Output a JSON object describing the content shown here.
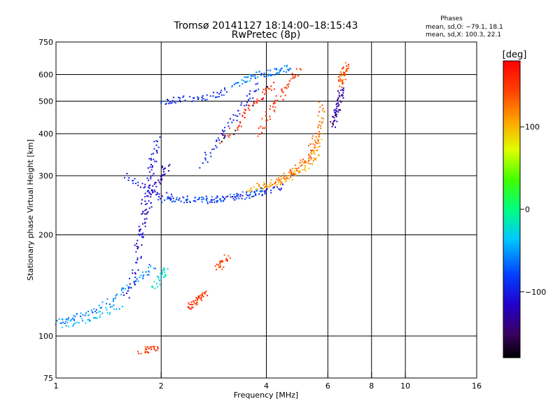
{
  "chart_data": {
    "type": "scatter",
    "title": "Tromsø 20141127 18:14:00–18:15:43",
    "subtitle": "RwPretec (8p)",
    "xlabel": "Frequency [MHz]",
    "ylabel": "Stationary phase Virtual Height [km]",
    "x_scale": "log",
    "y_scale": "log",
    "xlim": [
      1,
      16
    ],
    "ylim": [
      75,
      750
    ],
    "x_ticks": [
      1,
      2,
      4,
      6,
      8,
      10,
      16
    ],
    "x_tick_labels": [
      "1",
      "2",
      "4",
      "6",
      "8",
      "10",
      "16"
    ],
    "y_ticks": [
      75,
      100,
      200,
      300,
      400,
      500,
      600,
      750
    ],
    "y_tick_labels": [
      "75",
      "100",
      "200",
      "300",
      "400",
      "500",
      "600",
      "750"
    ],
    "grid": true,
    "stats": {
      "title": "Phases",
      "line_o": "mean, sd,O: −79.1, 18.1",
      "line_x": "mean, sd,X: 100.3, 22.1"
    },
    "colorbar": {
      "label": "[deg]",
      "range": [
        -180,
        180
      ],
      "ticks": [
        100,
        0,
        -100
      ],
      "tick_labels": [
        "100",
        "0",
        "−100"
      ]
    },
    "traces": [
      {
        "x": [
          1.0,
          1.1,
          1.25,
          1.45,
          1.6,
          1.75,
          1.9
        ],
        "y": [
          110,
          112,
          118,
          128,
          138,
          150,
          162
        ],
        "phase": -60
      },
      {
        "x": [
          1.05,
          1.2,
          1.35,
          1.55
        ],
        "y": [
          108,
          111,
          116,
          124
        ],
        "phase": -40
      },
      {
        "x": [
          1.6,
          1.7,
          1.75,
          1.8,
          1.85,
          1.9,
          1.95
        ],
        "y": [
          130,
          160,
          200,
          250,
          300,
          340,
          390
        ],
        "phase": -110
      },
      {
        "x": [
          1.7,
          1.8,
          1.9,
          2.0,
          2.1
        ],
        "y": [
          180,
          230,
          270,
          300,
          320
        ],
        "phase": -120
      },
      {
        "x": [
          1.6,
          1.8,
          2.0,
          2.2,
          2.6,
          3.0,
          3.5,
          4.0,
          4.5
        ],
        "y": [
          300,
          275,
          262,
          256,
          254,
          256,
          262,
          270,
          282
        ],
        "phase": -100
      },
      {
        "x": [
          2.0,
          2.4,
          2.8,
          3.2,
          3.6,
          4.0
        ],
        "y": [
          255,
          252,
          254,
          258,
          264,
          272
        ],
        "phase": -70
      },
      {
        "x": [
          3.6,
          3.9,
          4.2,
          4.5,
          4.8,
          5.1,
          5.4,
          5.6,
          5.7
        ],
        "y": [
          275,
          280,
          285,
          292,
          300,
          315,
          335,
          360,
          400
        ],
        "phase": 110
      },
      {
        "x": [
          4.2,
          4.6,
          5.0,
          5.3,
          5.5,
          5.7,
          5.8
        ],
        "y": [
          290,
          300,
          320,
          345,
          380,
          430,
          500
        ],
        "phase": 130
      },
      {
        "x": [
          3.0,
          3.3,
          3.6,
          3.9,
          4.2
        ],
        "y": [
          380,
          420,
          480,
          520,
          560
        ],
        "phase": 165
      },
      {
        "x": [
          3.8,
          4.1,
          4.4,
          4.7,
          5.0
        ],
        "y": [
          400,
          460,
          520,
          580,
          620
        ],
        "phase": 150
      },
      {
        "x": [
          2.6,
          2.9,
          3.2,
          3.5,
          3.8
        ],
        "y": [
          320,
          380,
          440,
          500,
          560
        ],
        "phase": -100
      },
      {
        "x": [
          2.0,
          2.2,
          2.5,
          2.8,
          3.1
        ],
        "y": [
          500,
          505,
          510,
          520,
          540
        ],
        "phase": -90
      },
      {
        "x": [
          3.2,
          3.5,
          3.8,
          4.1,
          4.4,
          4.7
        ],
        "y": [
          560,
          580,
          600,
          610,
          620,
          630
        ],
        "phase": -60
      },
      {
        "x": [
          6.2,
          6.3,
          6.4,
          6.5,
          6.6
        ],
        "y": [
          420,
          450,
          480,
          510,
          550
        ],
        "phase": -130
      },
      {
        "x": [
          6.5,
          6.6,
          6.7,
          6.8
        ],
        "y": [
          560,
          590,
          610,
          640
        ],
        "phase": 140
      },
      {
        "x": [
          2.4,
          2.5,
          2.6,
          2.7
        ],
        "y": [
          122,
          125,
          130,
          136
        ],
        "phase": 150
      },
      {
        "x": [
          2.9,
          3.0,
          3.1
        ],
        "y": [
          160,
          165,
          172
        ],
        "phase": 140
      },
      {
        "x": [
          1.75,
          1.85,
          1.95
        ],
        "y": [
          90,
          91,
          92
        ],
        "phase": 150
      },
      {
        "x": [
          1.9,
          2.0,
          2.05
        ],
        "y": [
          140,
          150,
          160
        ],
        "phase": -20
      }
    ]
  }
}
